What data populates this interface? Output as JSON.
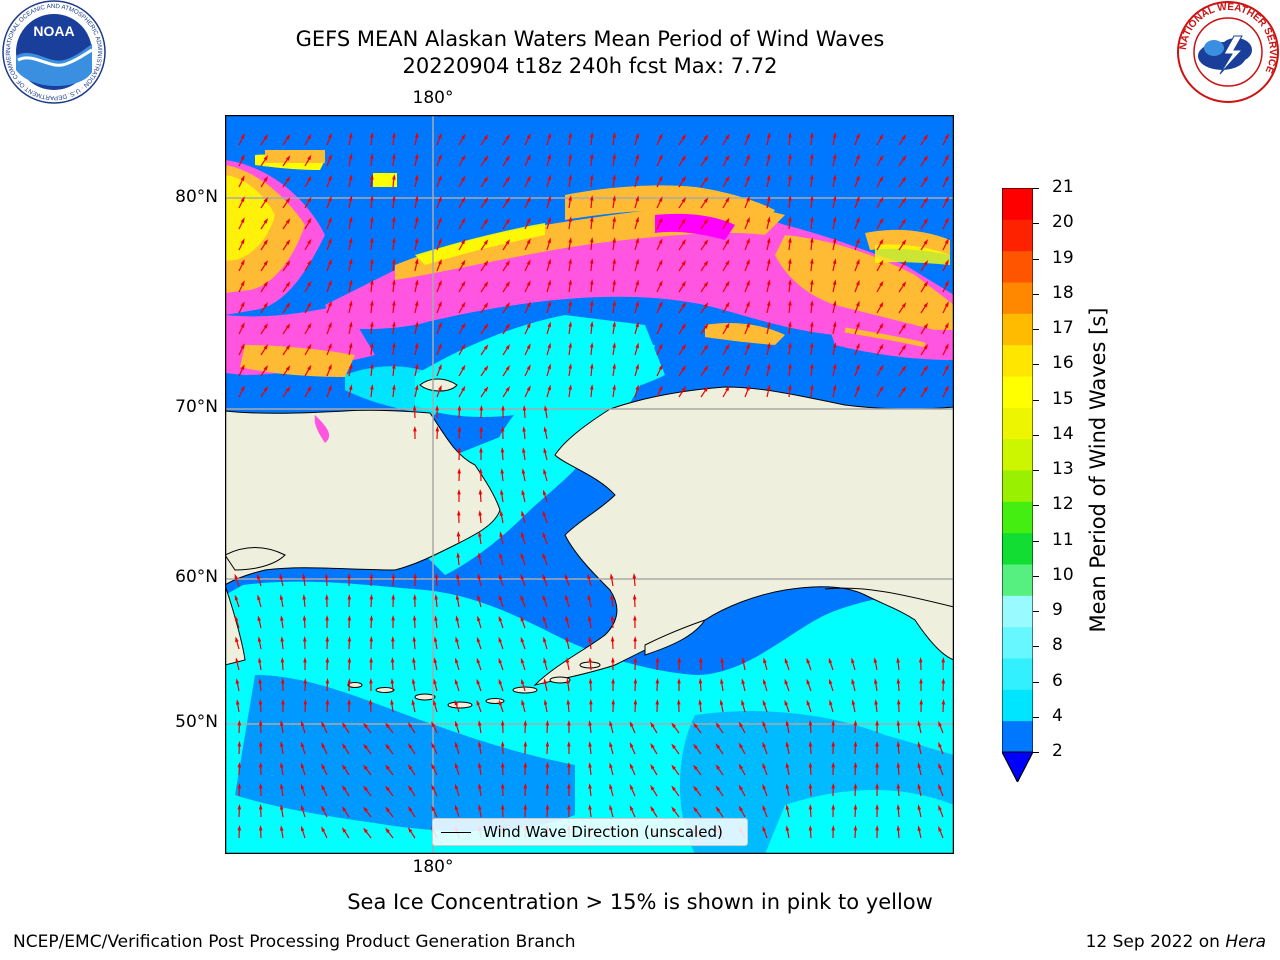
{
  "title": {
    "line1": "GEFS MEAN Alaskan Waters Mean Period of Wind Waves",
    "line2": "20220904 t18z 240h fcst   Max: 7.72"
  },
  "map": {
    "lat_labels": [
      "80°N",
      "70°N",
      "60°N",
      "50°N"
    ],
    "lon_label_top": "180°",
    "lon_label_bottom": "180°",
    "legend_label": "Wind Wave Direction (unscaled)"
  },
  "colorbar": {
    "label": "Mean Period of Wind Waves [s]",
    "ticks": [
      "21",
      "20",
      "19",
      "18",
      "17",
      "16",
      "15",
      "14",
      "13",
      "12",
      "11",
      "10",
      "9",
      "8",
      "6",
      "4",
      "2"
    ],
    "colors_bottom_to_top": [
      "#0077ff",
      "#00e5ff",
      "#33f0ff",
      "#66f7ff",
      "#99fbff",
      "#55f080",
      "#11dd33",
      "#44ee11",
      "#99f000",
      "#ccf500",
      "#eef500",
      "#ffff00",
      "#ffe600",
      "#ffbb00",
      "#ff8800",
      "#ff5500",
      "#ff2200",
      "#ff0000"
    ],
    "extend_below_color": "#0000ff"
  },
  "colors": {
    "land": "#efefdd",
    "water_background": "#0077ff",
    "deep_blue": "#0000ff",
    "cyan": "#00ffff",
    "ice_pink": "#ff55e0",
    "ice_magenta": "#ff00ff",
    "ice_orange": "#ffbb33",
    "ice_yellow": "#ffff00",
    "arrow": "#ee0000",
    "grid": "#aaaaaa"
  },
  "caption": "Sea Ice Concentration > 15% is shown in pink to yellow",
  "footer": {
    "credit": "NCEP/EMC/Verification Post Processing Product Generation Branch",
    "date": "12 Sep 2022 on",
    "host": "Hera"
  },
  "logos": {
    "noaa": {
      "text": "NOAA",
      "ring_text": "NATIONAL OCEANIC AND ATMOSPHERIC ADMINISTRATION · U.S. DEPARTMENT OF COMMERCE"
    },
    "nws": {
      "ring_text": "NATIONAL WEATHER SERVICE"
    }
  }
}
